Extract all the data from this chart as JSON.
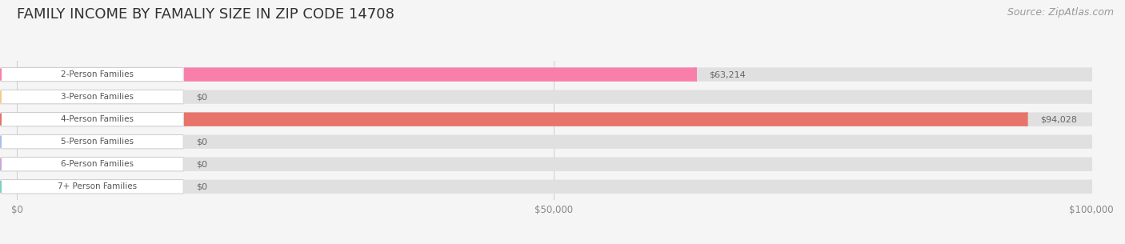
{
  "title": "FAMILY INCOME BY FAMALIY SIZE IN ZIP CODE 14708",
  "source": "Source: ZipAtlas.com",
  "categories": [
    "2-Person Families",
    "3-Person Families",
    "4-Person Families",
    "5-Person Families",
    "6-Person Families",
    "7+ Person Families"
  ],
  "values": [
    63214,
    0,
    94028,
    0,
    0,
    0
  ],
  "bar_colors": [
    "#f97faa",
    "#f5c98a",
    "#e8736a",
    "#a8c0e8",
    "#c9a8d8",
    "#7ecec4"
  ],
  "value_labels": [
    "$63,214",
    "$0",
    "$94,028",
    "$0",
    "$0",
    "$0"
  ],
  "xlim": [
    0,
    100000
  ],
  "xticks": [
    0,
    50000,
    100000
  ],
  "xtick_labels": [
    "$0",
    "$50,000",
    "$100,000"
  ],
  "background_color": "#f5f5f5",
  "title_fontsize": 13,
  "source_fontsize": 9
}
